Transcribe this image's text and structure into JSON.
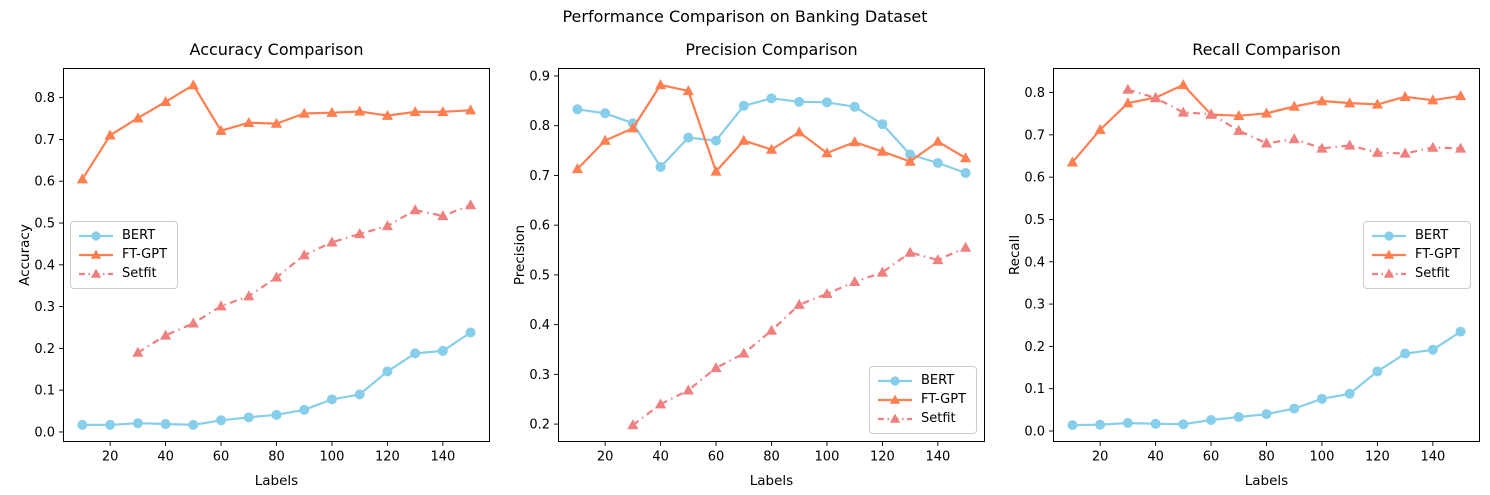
{
  "figure": {
    "suptitle": "Performance Comparison on Banking Dataset",
    "background": "#ffffff",
    "text_color": "#000000",
    "frame_color": "#000000",
    "legend_border_color": "#cccccc"
  },
  "chart_data": [
    {
      "type": "line",
      "title": "Accuracy Comparison",
      "xlabel": "Labels",
      "ylabel": "Accuracy",
      "grid": false,
      "xlim": [
        3,
        157
      ],
      "ylim": [
        -0.024,
        0.871
      ],
      "x_tick_values": [
        20,
        40,
        60,
        80,
        100,
        120,
        140
      ],
      "x_ticks": [
        "20",
        "40",
        "60",
        "80",
        "100",
        "120",
        "140"
      ],
      "y_tick_values": [
        0.0,
        0.1,
        0.2,
        0.3,
        0.4,
        0.5,
        0.6,
        0.7,
        0.8
      ],
      "y_ticks": [
        "0.0",
        "0.1",
        "0.2",
        "0.3",
        "0.4",
        "0.5",
        "0.6",
        "0.7",
        "0.8"
      ],
      "legend_position": "center-left",
      "series": [
        {
          "name": "BERT",
          "color": "#87CEEB",
          "marker": "circle",
          "linestyle": "solid",
          "x": [
            10,
            20,
            30,
            40,
            50,
            60,
            70,
            80,
            90,
            100,
            110,
            120,
            130,
            140,
            150
          ],
          "y": [
            0.017,
            0.017,
            0.021,
            0.019,
            0.017,
            0.028,
            0.035,
            0.041,
            0.053,
            0.078,
            0.09,
            0.145,
            0.188,
            0.194,
            0.238
          ]
        },
        {
          "name": "FT-GPT",
          "color": "#FF7F50",
          "marker": "triangle",
          "linestyle": "solid",
          "x": [
            10,
            20,
            30,
            40,
            50,
            60,
            70,
            80,
            90,
            100,
            110,
            120,
            130,
            140,
            150
          ],
          "y": [
            0.605,
            0.71,
            0.751,
            0.79,
            0.83,
            0.721,
            0.74,
            0.738,
            0.762,
            0.764,
            0.767,
            0.757,
            0.766,
            0.766,
            0.77
          ]
        },
        {
          "name": "Setfit",
          "color": "#F08080",
          "marker": "triangle",
          "linestyle": "dashdot",
          "x": [
            30,
            40,
            50,
            60,
            70,
            80,
            90,
            100,
            110,
            120,
            130,
            140,
            150
          ],
          "y": [
            0.19,
            0.231,
            0.26,
            0.301,
            0.325,
            0.37,
            0.423,
            0.454,
            0.474,
            0.493,
            0.531,
            0.517,
            0.543
          ]
        }
      ]
    },
    {
      "type": "line",
      "title": "Precision Comparison",
      "xlabel": "Labels",
      "ylabel": "Precision",
      "grid": false,
      "xlim": [
        3,
        157
      ],
      "ylim": [
        0.164,
        0.916
      ],
      "x_tick_values": [
        20,
        40,
        60,
        80,
        100,
        120,
        140
      ],
      "x_ticks": [
        "20",
        "40",
        "60",
        "80",
        "100",
        "120",
        "140"
      ],
      "y_tick_values": [
        0.2,
        0.3,
        0.4,
        0.5,
        0.6,
        0.7,
        0.8,
        0.9
      ],
      "y_ticks": [
        "0.2",
        "0.3",
        "0.4",
        "0.5",
        "0.6",
        "0.7",
        "0.8",
        "0.9"
      ],
      "legend_position": "lower-right",
      "series": [
        {
          "name": "BERT",
          "color": "#87CEEB",
          "marker": "circle",
          "linestyle": "solid",
          "x": [
            10,
            20,
            30,
            40,
            50,
            60,
            70,
            80,
            90,
            100,
            110,
            120,
            130,
            140,
            150
          ],
          "y": [
            0.833,
            0.825,
            0.805,
            0.717,
            0.776,
            0.77,
            0.84,
            0.855,
            0.848,
            0.847,
            0.838,
            0.803,
            0.742,
            0.725,
            0.705
          ]
        },
        {
          "name": "FT-GPT",
          "color": "#FF7F50",
          "marker": "triangle",
          "linestyle": "solid",
          "x": [
            10,
            20,
            30,
            40,
            50,
            60,
            70,
            80,
            90,
            100,
            110,
            120,
            130,
            140,
            150
          ],
          "y": [
            0.713,
            0.77,
            0.795,
            0.882,
            0.87,
            0.708,
            0.77,
            0.752,
            0.787,
            0.745,
            0.767,
            0.748,
            0.728,
            0.768,
            0.735
          ]
        },
        {
          "name": "Setfit",
          "color": "#F08080",
          "marker": "triangle",
          "linestyle": "dashdot",
          "x": [
            30,
            40,
            50,
            60,
            70,
            80,
            90,
            100,
            110,
            120,
            130,
            140,
            150
          ],
          "y": [
            0.198,
            0.24,
            0.268,
            0.313,
            0.342,
            0.388,
            0.44,
            0.462,
            0.486,
            0.505,
            0.545,
            0.53,
            0.555
          ]
        }
      ]
    },
    {
      "type": "line",
      "title": "Recall Comparison",
      "xlabel": "Labels",
      "ylabel": "Recall",
      "grid": false,
      "xlim": [
        3,
        157
      ],
      "ylim": [
        -0.026,
        0.858
      ],
      "x_tick_values": [
        20,
        40,
        60,
        80,
        100,
        120,
        140
      ],
      "x_ticks": [
        "20",
        "40",
        "60",
        "80",
        "100",
        "120",
        "140"
      ],
      "y_tick_values": [
        0.0,
        0.1,
        0.2,
        0.3,
        0.4,
        0.5,
        0.6,
        0.7,
        0.8
      ],
      "y_ticks": [
        "0.0",
        "0.1",
        "0.2",
        "0.3",
        "0.4",
        "0.5",
        "0.6",
        "0.7",
        "0.8"
      ],
      "legend_position": "center-right",
      "series": [
        {
          "name": "BERT",
          "color": "#87CEEB",
          "marker": "circle",
          "linestyle": "solid",
          "x": [
            10,
            20,
            30,
            40,
            50,
            60,
            70,
            80,
            90,
            100,
            110,
            120,
            130,
            140,
            150
          ],
          "y": [
            0.014,
            0.015,
            0.019,
            0.017,
            0.016,
            0.026,
            0.033,
            0.04,
            0.053,
            0.076,
            0.088,
            0.141,
            0.183,
            0.192,
            0.235
          ]
        },
        {
          "name": "FT-GPT",
          "color": "#FF7F50",
          "marker": "triangle",
          "linestyle": "solid",
          "x": [
            10,
            20,
            30,
            40,
            50,
            60,
            70,
            80,
            90,
            100,
            110,
            120,
            130,
            140,
            150
          ],
          "y": [
            0.635,
            0.712,
            0.775,
            0.788,
            0.818,
            0.748,
            0.745,
            0.751,
            0.767,
            0.78,
            0.775,
            0.772,
            0.79,
            0.782,
            0.792
          ]
        },
        {
          "name": "Setfit",
          "color": "#F08080",
          "marker": "triangle",
          "linestyle": "dashdot",
          "x": [
            30,
            40,
            50,
            60,
            70,
            80,
            90,
            100,
            110,
            120,
            130,
            140,
            150
          ],
          "y": [
            0.807,
            0.787,
            0.753,
            0.749,
            0.71,
            0.68,
            0.69,
            0.668,
            0.675,
            0.658,
            0.656,
            0.67,
            0.668
          ]
        }
      ]
    }
  ]
}
